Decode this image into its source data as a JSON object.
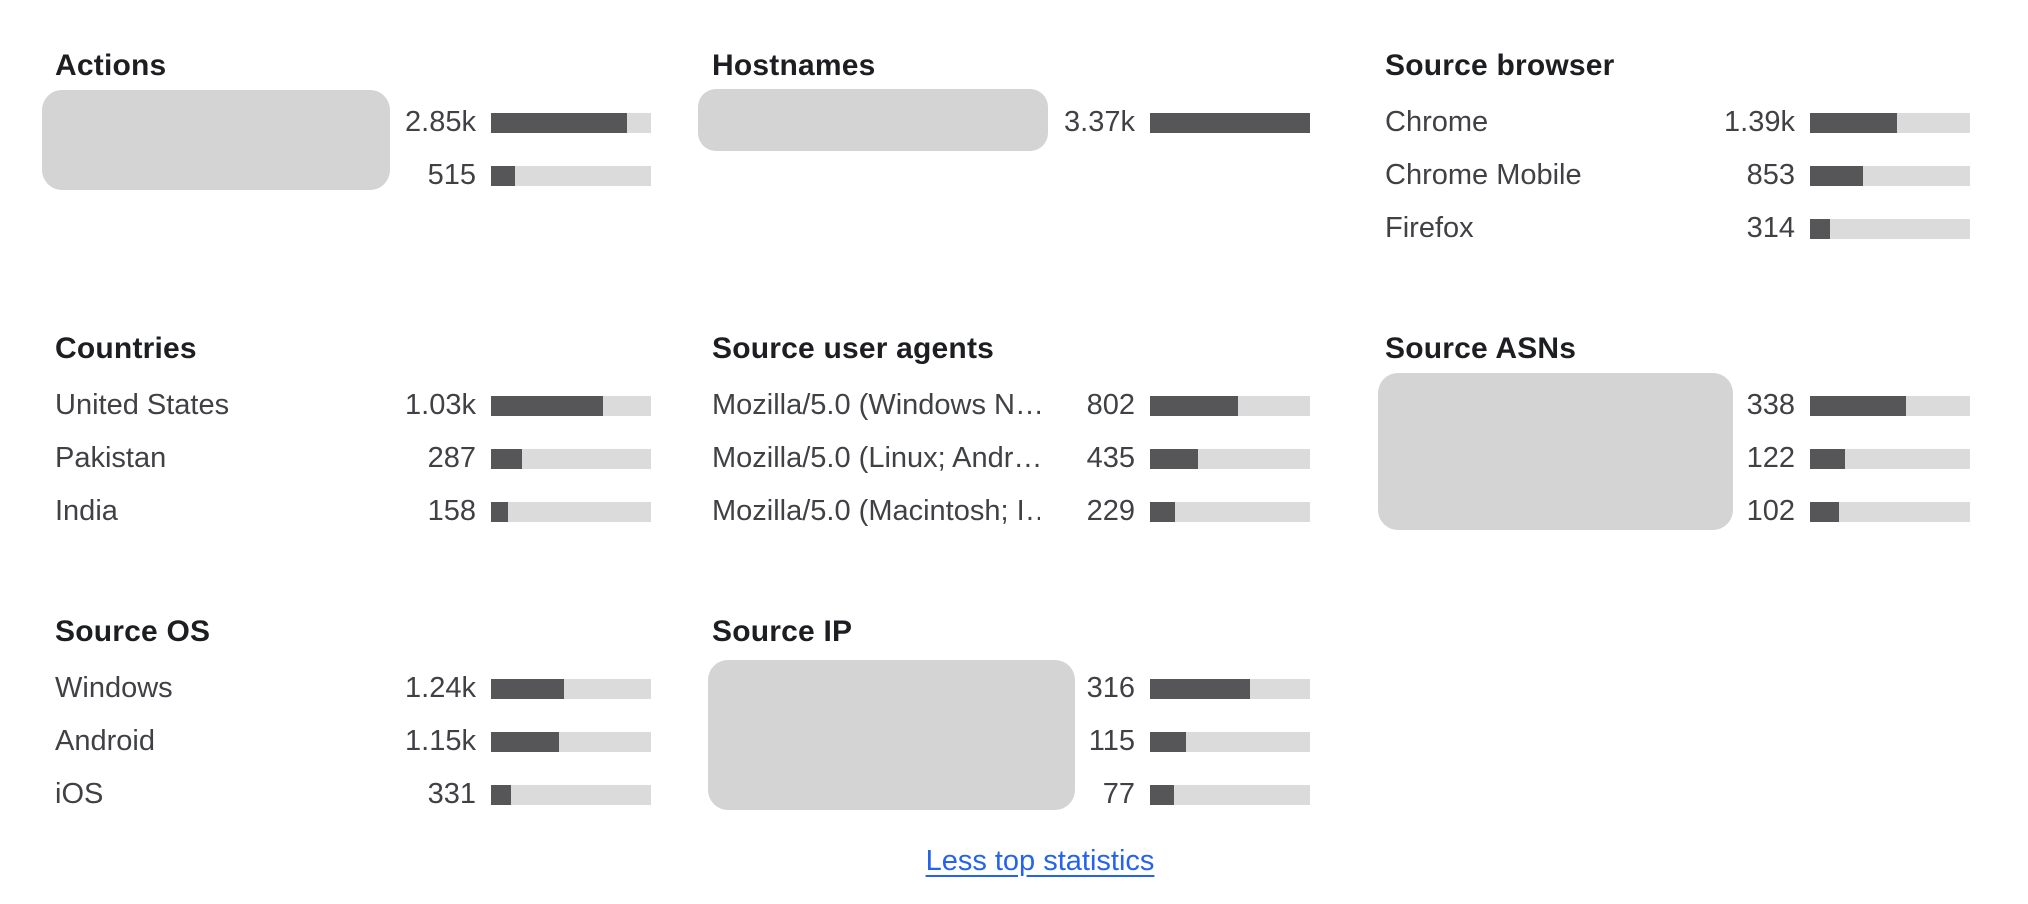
{
  "colors": {
    "bar_fill": "#565659",
    "bar_track": "#dbdbdc",
    "redaction_blob": "#d4d4d5",
    "heading_text": "#1d1e21",
    "row_text": "#404145",
    "link_blue": "#2563eb",
    "background": "#ffffff"
  },
  "footer": {
    "link_label": "Less top statistics"
  },
  "panels": [
    {
      "title": "Actions",
      "redacted_labels": true,
      "rows": [
        {
          "label": "",
          "value": "2.85k",
          "value_num": 2850,
          "bar_pct": 84.7
        },
        {
          "label": "",
          "value": "515",
          "value_num": 515,
          "bar_pct": 15.3
        }
      ]
    },
    {
      "title": "Hostnames",
      "redacted_labels": true,
      "rows": [
        {
          "label": "",
          "value": "3.37k",
          "value_num": 3370,
          "bar_pct": 100
        }
      ]
    },
    {
      "title": "Source browser",
      "redacted_labels": false,
      "rows": [
        {
          "label": "Chrome",
          "value": "1.39k",
          "value_num": 1390,
          "bar_pct": 54.4
        },
        {
          "label": "Chrome Mobile",
          "value": "853",
          "value_num": 853,
          "bar_pct": 33.4
        },
        {
          "label": "Firefox",
          "value": "314",
          "value_num": 314,
          "bar_pct": 12.3
        }
      ]
    },
    {
      "title": "Countries",
      "redacted_labels": false,
      "rows": [
        {
          "label": "United States",
          "value": "1.03k",
          "value_num": 1030,
          "bar_pct": 69.8
        },
        {
          "label": "Pakistan",
          "value": "287",
          "value_num": 287,
          "bar_pct": 19.5
        },
        {
          "label": "India",
          "value": "158",
          "value_num": 158,
          "bar_pct": 10.7
        }
      ]
    },
    {
      "title": "Source user agents",
      "redacted_labels": false,
      "rows": [
        {
          "label": "Mozilla/5.0 (Windows N…",
          "value": "802",
          "value_num": 802,
          "bar_pct": 54.7
        },
        {
          "label": "Mozilla/5.0 (Linux; Andr…",
          "value": "435",
          "value_num": 435,
          "bar_pct": 29.7
        },
        {
          "label": "Mozilla/5.0 (Macintosh; I…",
          "value": "229",
          "value_num": 229,
          "bar_pct": 15.6
        }
      ]
    },
    {
      "title": "Source ASNs",
      "redacted_labels": true,
      "rows": [
        {
          "label": "",
          "value": "338",
          "value_num": 338,
          "bar_pct": 60.1
        },
        {
          "label": "",
          "value": "122",
          "value_num": 122,
          "bar_pct": 21.7
        },
        {
          "label": "",
          "value": "102",
          "value_num": 102,
          "bar_pct": 18.1
        }
      ]
    },
    {
      "title": "Source OS",
      "redacted_labels": false,
      "rows": [
        {
          "label": "Windows",
          "value": "1.24k",
          "value_num": 1240,
          "bar_pct": 45.6
        },
        {
          "label": "Android",
          "value": "1.15k",
          "value_num": 1150,
          "bar_pct": 42.3
        },
        {
          "label": "iOS",
          "value": "331",
          "value_num": 331,
          "bar_pct": 12.2
        }
      ]
    },
    {
      "title": "Source IP",
      "redacted_labels": true,
      "rows": [
        {
          "label": "",
          "value": "316",
          "value_num": 316,
          "bar_pct": 62.2
        },
        {
          "label": "",
          "value": "115",
          "value_num": 115,
          "bar_pct": 22.6
        },
        {
          "label": "",
          "value": "77",
          "value_num": 77,
          "bar_pct": 15.2
        }
      ]
    }
  ]
}
